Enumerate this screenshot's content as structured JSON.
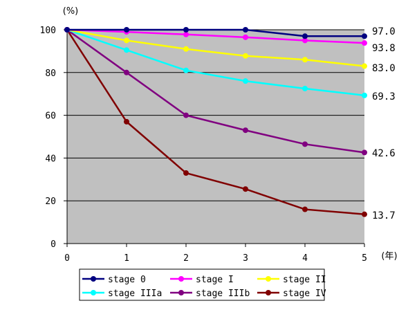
{
  "chart_data": {
    "type": "line",
    "ylabel_unit": "(%)",
    "xlabel_unit": "(年)",
    "ylim": [
      0,
      100
    ],
    "xlim": [
      0,
      5
    ],
    "y_ticks": [
      "0",
      "20",
      "40",
      "60",
      "80",
      "100"
    ],
    "x_ticks": [
      "0",
      "1",
      "2",
      "3",
      "4",
      "5"
    ],
    "grid": "horizontal",
    "legend_position": "bottom",
    "x": [
      0,
      1,
      2,
      3,
      4,
      5
    ],
    "series": [
      {
        "name": "stage 0",
        "color": "#000080",
        "values": [
          100,
          100,
          100,
          100,
          97.0,
          97.0
        ],
        "end_label": "97.0"
      },
      {
        "name": "stage I",
        "color": "#ff00ff",
        "values": [
          100,
          99.0,
          97.8,
          96.5,
          95.0,
          93.8
        ],
        "end_label": "93.8"
      },
      {
        "name": "stage II",
        "color": "#ffff00",
        "values": [
          100,
          95.0,
          91.0,
          87.8,
          86.0,
          83.0
        ],
        "end_label": "83.0"
      },
      {
        "name": "stage IIIa",
        "color": "#00ffff",
        "values": [
          100,
          90.5,
          81.0,
          76.0,
          72.5,
          69.3
        ],
        "end_label": "69.3"
      },
      {
        "name": "stage IIIb",
        "color": "#800080",
        "values": [
          100,
          80.0,
          60.0,
          53.0,
          46.5,
          42.6
        ],
        "end_label": "42.6"
      },
      {
        "name": "stage IV",
        "color": "#800000",
        "values": [
          100,
          57.0,
          33.0,
          25.5,
          16.0,
          13.7
        ],
        "end_label": "13.7"
      }
    ]
  }
}
